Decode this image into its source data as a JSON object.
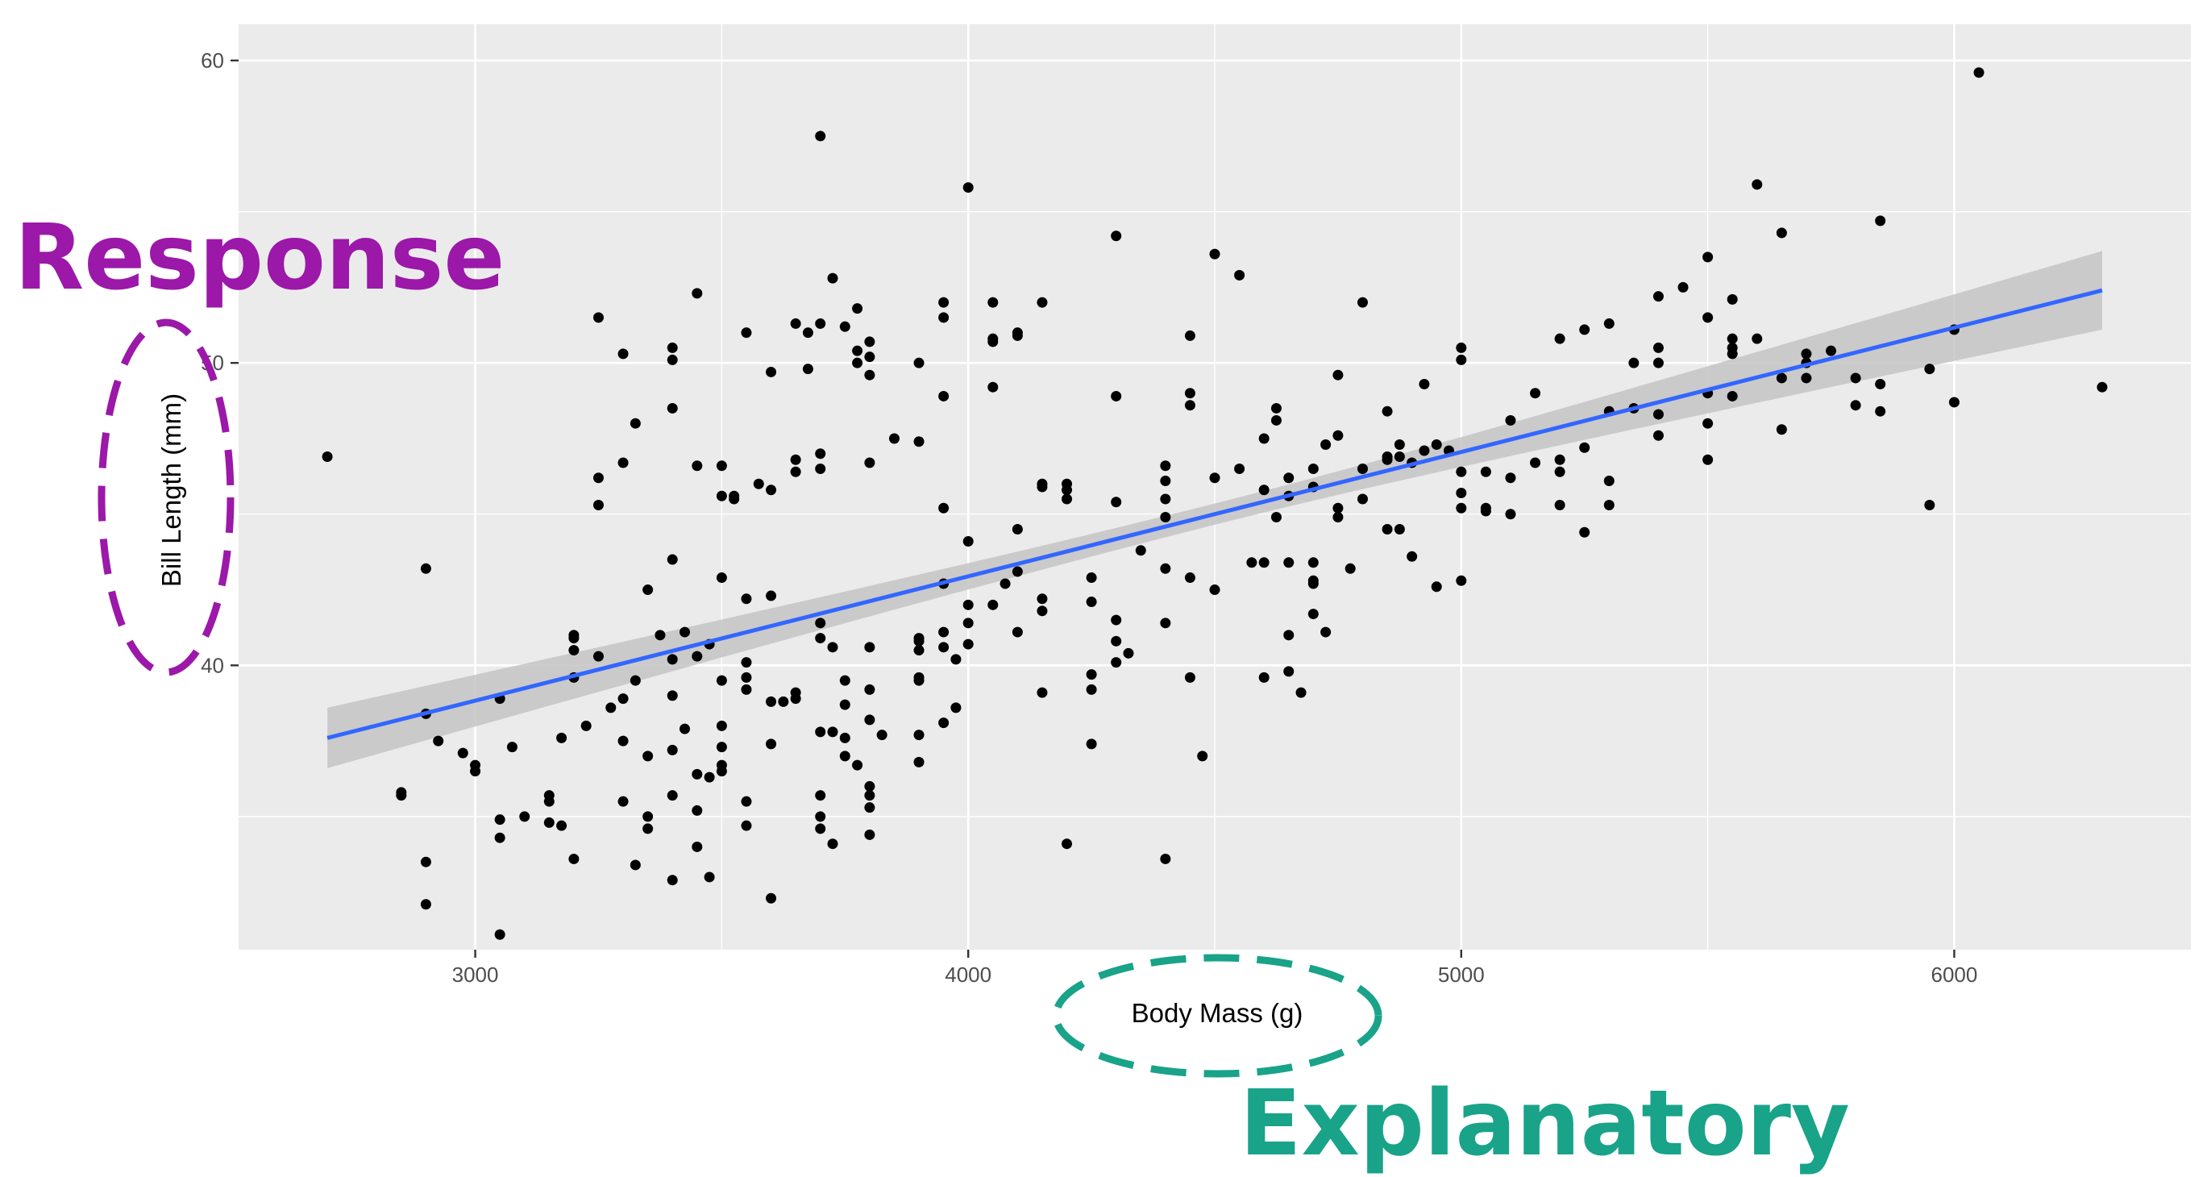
{
  "colors": {
    "panel": "#ebebeb",
    "grid_major": "#ffffff",
    "point": "#000000",
    "fit_line": "#3366ff",
    "ci_band": "#c4c4c4",
    "response": "#9b18a9",
    "explanatory": "#19a389"
  },
  "annotations": {
    "response": "Response",
    "explanatory": "Explanatory"
  },
  "chart_data": {
    "type": "scatter",
    "xlabel": "Body Mass (g)",
    "ylabel": "Bill Length (mm)",
    "xlim": [
      2520,
      6480
    ],
    "ylim": [
      30.6,
      61.2
    ],
    "x_ticks": [
      3000,
      4000,
      5000,
      6000
    ],
    "y_ticks": [
      40,
      50,
      60
    ],
    "grid": true,
    "fit": {
      "method": "linear",
      "x": [
        2700,
        6300
      ],
      "y": [
        37.6,
        52.4
      ],
      "ci_halfwidth": [
        1.0,
        1.3
      ]
    },
    "points": [
      [
        2700,
        46.9
      ],
      [
        2850,
        35.8
      ],
      [
        2850,
        35.7
      ],
      [
        2900,
        43.2
      ],
      [
        2900,
        38.4
      ],
      [
        2900,
        33.5
      ],
      [
        2900,
        32.1
      ],
      [
        2925,
        37.5
      ],
      [
        2975,
        37.1
      ],
      [
        3000,
        36.7
      ],
      [
        3000,
        36.5
      ],
      [
        3050,
        38.9
      ],
      [
        3050,
        34.9
      ],
      [
        3050,
        34.3
      ],
      [
        3050,
        31.1
      ],
      [
        3075,
        37.3
      ],
      [
        3100,
        35.0
      ],
      [
        3150,
        35.7
      ],
      [
        3150,
        35.5
      ],
      [
        3150,
        34.8
      ],
      [
        3175,
        37.6
      ],
      [
        3175,
        34.7
      ],
      [
        3200,
        41.0
      ],
      [
        3200,
        40.9
      ],
      [
        3200,
        40.5
      ],
      [
        3200,
        39.6
      ],
      [
        3200,
        33.6
      ],
      [
        3225,
        38.0
      ],
      [
        3250,
        51.5
      ],
      [
        3250,
        46.2
      ],
      [
        3250,
        45.3
      ],
      [
        3250,
        40.3
      ],
      [
        3275,
        38.6
      ],
      [
        3300,
        50.3
      ],
      [
        3300,
        46.7
      ],
      [
        3300,
        38.9
      ],
      [
        3300,
        37.5
      ],
      [
        3300,
        35.5
      ],
      [
        3325,
        48.0
      ],
      [
        3325,
        39.5
      ],
      [
        3325,
        33.4
      ],
      [
        3350,
        42.5
      ],
      [
        3350,
        37.0
      ],
      [
        3350,
        35.0
      ],
      [
        3350,
        34.6
      ],
      [
        3375,
        41.0
      ],
      [
        3400,
        50.5
      ],
      [
        3400,
        50.1
      ],
      [
        3400,
        48.5
      ],
      [
        3400,
        43.5
      ],
      [
        3400,
        40.2
      ],
      [
        3400,
        39.0
      ],
      [
        3400,
        37.2
      ],
      [
        3400,
        35.7
      ],
      [
        3400,
        32.9
      ],
      [
        3425,
        41.1
      ],
      [
        3425,
        37.9
      ],
      [
        3450,
        52.3
      ],
      [
        3450,
        46.6
      ],
      [
        3450,
        40.3
      ],
      [
        3450,
        36.4
      ],
      [
        3450,
        35.2
      ],
      [
        3450,
        34.0
      ],
      [
        3475,
        40.7
      ],
      [
        3475,
        36.3
      ],
      [
        3475,
        33.0
      ],
      [
        3500,
        46.6
      ],
      [
        3500,
        45.6
      ],
      [
        3500,
        42.9
      ],
      [
        3500,
        39.5
      ],
      [
        3500,
        38.0
      ],
      [
        3500,
        37.3
      ],
      [
        3500,
        36.7
      ],
      [
        3500,
        36.5
      ],
      [
        3525,
        45.5
      ],
      [
        3525,
        45.6
      ],
      [
        3550,
        51.0
      ],
      [
        3550,
        42.2
      ],
      [
        3550,
        40.1
      ],
      [
        3550,
        39.6
      ],
      [
        3550,
        39.2
      ],
      [
        3550,
        35.5
      ],
      [
        3550,
        34.7
      ],
      [
        3575,
        46.0
      ],
      [
        3600,
        49.7
      ],
      [
        3600,
        45.8
      ],
      [
        3600,
        42.3
      ],
      [
        3600,
        38.8
      ],
      [
        3600,
        37.4
      ],
      [
        3600,
        32.3
      ],
      [
        3625,
        38.8
      ],
      [
        3650,
        51.3
      ],
      [
        3650,
        46.8
      ],
      [
        3650,
        46.4
      ],
      [
        3650,
        39.1
      ],
      [
        3650,
        38.9
      ],
      [
        3675,
        49.8
      ],
      [
        3675,
        51.0
      ],
      [
        3700,
        57.5
      ],
      [
        3700,
        51.3
      ],
      [
        3700,
        47.0
      ],
      [
        3700,
        46.5
      ],
      [
        3700,
        41.4
      ],
      [
        3700,
        40.9
      ],
      [
        3700,
        37.8
      ],
      [
        3700,
        35.7
      ],
      [
        3700,
        35.0
      ],
      [
        3700,
        34.6
      ],
      [
        3725,
        52.8
      ],
      [
        3725,
        40.6
      ],
      [
        3725,
        37.8
      ],
      [
        3725,
        34.1
      ],
      [
        3750,
        51.2
      ],
      [
        3750,
        39.5
      ],
      [
        3750,
        38.7
      ],
      [
        3750,
        37.6
      ],
      [
        3750,
        37.0
      ],
      [
        3775,
        51.8
      ],
      [
        3775,
        50.4
      ],
      [
        3775,
        50.0
      ],
      [
        3775,
        36.7
      ],
      [
        3800,
        50.7
      ],
      [
        3800,
        50.2
      ],
      [
        3800,
        49.6
      ],
      [
        3800,
        46.7
      ],
      [
        3800,
        40.6
      ],
      [
        3800,
        39.2
      ],
      [
        3800,
        38.2
      ],
      [
        3800,
        36.0
      ],
      [
        3800,
        35.7
      ],
      [
        3800,
        35.3
      ],
      [
        3800,
        34.4
      ],
      [
        3825,
        37.7
      ],
      [
        3850,
        47.5
      ],
      [
        3900,
        50.0
      ],
      [
        3900,
        47.4
      ],
      [
        3900,
        40.9
      ],
      [
        3900,
        40.8
      ],
      [
        3900,
        40.5
      ],
      [
        3900,
        39.6
      ],
      [
        3900,
        39.5
      ],
      [
        3900,
        37.7
      ],
      [
        3900,
        36.8
      ],
      [
        3950,
        52.0
      ],
      [
        3950,
        51.5
      ],
      [
        3950,
        48.9
      ],
      [
        3950,
        45.2
      ],
      [
        3950,
        42.7
      ],
      [
        3950,
        41.1
      ],
      [
        3950,
        40.6
      ],
      [
        3950,
        38.1
      ],
      [
        3975,
        40.2
      ],
      [
        3975,
        38.6
      ],
      [
        4000,
        55.8
      ],
      [
        4000,
        44.1
      ],
      [
        4000,
        42.0
      ],
      [
        4000,
        41.4
      ],
      [
        4000,
        40.7
      ],
      [
        4050,
        52.0
      ],
      [
        4050,
        50.8
      ],
      [
        4050,
        50.7
      ],
      [
        4050,
        49.2
      ],
      [
        4050,
        42.0
      ],
      [
        4075,
        42.7
      ],
      [
        4100,
        51.0
      ],
      [
        4100,
        50.9
      ],
      [
        4100,
        44.5
      ],
      [
        4100,
        43.1
      ],
      [
        4100,
        41.1
      ],
      [
        4150,
        52.0
      ],
      [
        4150,
        46.0
      ],
      [
        4150,
        45.9
      ],
      [
        4150,
        42.2
      ],
      [
        4150,
        41.8
      ],
      [
        4150,
        39.1
      ],
      [
        4200,
        46.0
      ],
      [
        4200,
        45.8
      ],
      [
        4200,
        45.5
      ],
      [
        4200,
        34.1
      ],
      [
        4250,
        42.9
      ],
      [
        4250,
        42.1
      ],
      [
        4250,
        39.7
      ],
      [
        4250,
        39.2
      ],
      [
        4250,
        37.4
      ],
      [
        4300,
        54.2
      ],
      [
        4300,
        48.9
      ],
      [
        4300,
        45.4
      ],
      [
        4300,
        41.5
      ],
      [
        4300,
        40.8
      ],
      [
        4300,
        40.1
      ],
      [
        4325,
        40.4
      ],
      [
        4350,
        43.8
      ],
      [
        4400,
        46.6
      ],
      [
        4400,
        46.1
      ],
      [
        4400,
        45.5
      ],
      [
        4400,
        44.9
      ],
      [
        4400,
        43.2
      ],
      [
        4400,
        41.4
      ],
      [
        4400,
        33.6
      ],
      [
        4450,
        50.9
      ],
      [
        4450,
        49.0
      ],
      [
        4450,
        48.6
      ],
      [
        4450,
        42.9
      ],
      [
        4450,
        39.6
      ],
      [
        4475,
        37.0
      ],
      [
        4500,
        53.6
      ],
      [
        4500,
        46.2
      ],
      [
        4500,
        42.5
      ],
      [
        4550,
        52.9
      ],
      [
        4550,
        46.5
      ],
      [
        4575,
        43.4
      ],
      [
        4600,
        47.5
      ],
      [
        4600,
        45.8
      ],
      [
        4600,
        43.4
      ],
      [
        4600,
        39.6
      ],
      [
        4625,
        48.5
      ],
      [
        4625,
        48.1
      ],
      [
        4625,
        44.9
      ],
      [
        4650,
        46.2
      ],
      [
        4650,
        45.6
      ],
      [
        4650,
        43.4
      ],
      [
        4650,
        41.0
      ],
      [
        4650,
        39.8
      ],
      [
        4675,
        39.1
      ],
      [
        4700,
        46.5
      ],
      [
        4700,
        45.9
      ],
      [
        4700,
        43.4
      ],
      [
        4700,
        42.8
      ],
      [
        4700,
        42.7
      ],
      [
        4700,
        41.7
      ],
      [
        4725,
        47.3
      ],
      [
        4725,
        41.1
      ],
      [
        4750,
        49.6
      ],
      [
        4750,
        47.6
      ],
      [
        4750,
        45.2
      ],
      [
        4750,
        44.9
      ],
      [
        4775,
        43.2
      ],
      [
        4800,
        52.0
      ],
      [
        4800,
        46.5
      ],
      [
        4800,
        45.5
      ],
      [
        4850,
        48.4
      ],
      [
        4850,
        46.9
      ],
      [
        4850,
        46.8
      ],
      [
        4850,
        44.5
      ],
      [
        4875,
        47.3
      ],
      [
        4875,
        46.9
      ],
      [
        4875,
        44.5
      ],
      [
        4900,
        46.7
      ],
      [
        4900,
        43.6
      ],
      [
        4925,
        49.3
      ],
      [
        4925,
        47.1
      ],
      [
        4950,
        47.3
      ],
      [
        4950,
        42.6
      ],
      [
        4975,
        47.1
      ],
      [
        5000,
        50.5
      ],
      [
        5000,
        50.1
      ],
      [
        5000,
        46.4
      ],
      [
        5000,
        45.7
      ],
      [
        5000,
        45.2
      ],
      [
        5000,
        42.8
      ],
      [
        5050,
        46.4
      ],
      [
        5050,
        45.2
      ],
      [
        5050,
        45.1
      ],
      [
        5100,
        48.1
      ],
      [
        5100,
        46.2
      ],
      [
        5100,
        45.0
      ],
      [
        5150,
        49.0
      ],
      [
        5150,
        46.7
      ],
      [
        5200,
        50.8
      ],
      [
        5200,
        46.8
      ],
      [
        5200,
        46.4
      ],
      [
        5200,
        45.3
      ],
      [
        5250,
        51.1
      ],
      [
        5250,
        47.2
      ],
      [
        5250,
        44.4
      ],
      [
        5300,
        51.3
      ],
      [
        5300,
        48.4
      ],
      [
        5300,
        46.1
      ],
      [
        5300,
        45.3
      ],
      [
        5350,
        50.0
      ],
      [
        5350,
        48.5
      ],
      [
        5400,
        52.2
      ],
      [
        5400,
        50.5
      ],
      [
        5400,
        50.0
      ],
      [
        5400,
        48.3
      ],
      [
        5400,
        47.6
      ],
      [
        5450,
        52.5
      ],
      [
        5500,
        53.5
      ],
      [
        5500,
        51.5
      ],
      [
        5500,
        49.0
      ],
      [
        5500,
        48.0
      ],
      [
        5500,
        46.8
      ],
      [
        5550,
        52.1
      ],
      [
        5550,
        50.8
      ],
      [
        5550,
        50.5
      ],
      [
        5550,
        50.3
      ],
      [
        5550,
        48.9
      ],
      [
        5600,
        55.9
      ],
      [
        5600,
        50.8
      ],
      [
        5650,
        54.3
      ],
      [
        5650,
        49.5
      ],
      [
        5650,
        47.8
      ],
      [
        5700,
        50.3
      ],
      [
        5700,
        49.5
      ],
      [
        5700,
        50.0
      ],
      [
        5750,
        50.4
      ],
      [
        5800,
        49.5
      ],
      [
        5800,
        48.6
      ],
      [
        5850,
        54.7
      ],
      [
        5850,
        49.3
      ],
      [
        5850,
        48.4
      ],
      [
        5950,
        49.8
      ],
      [
        5950,
        45.3
      ],
      [
        6000,
        51.1
      ],
      [
        6000,
        48.7
      ],
      [
        6050,
        59.6
      ],
      [
        6300,
        49.2
      ]
    ]
  }
}
